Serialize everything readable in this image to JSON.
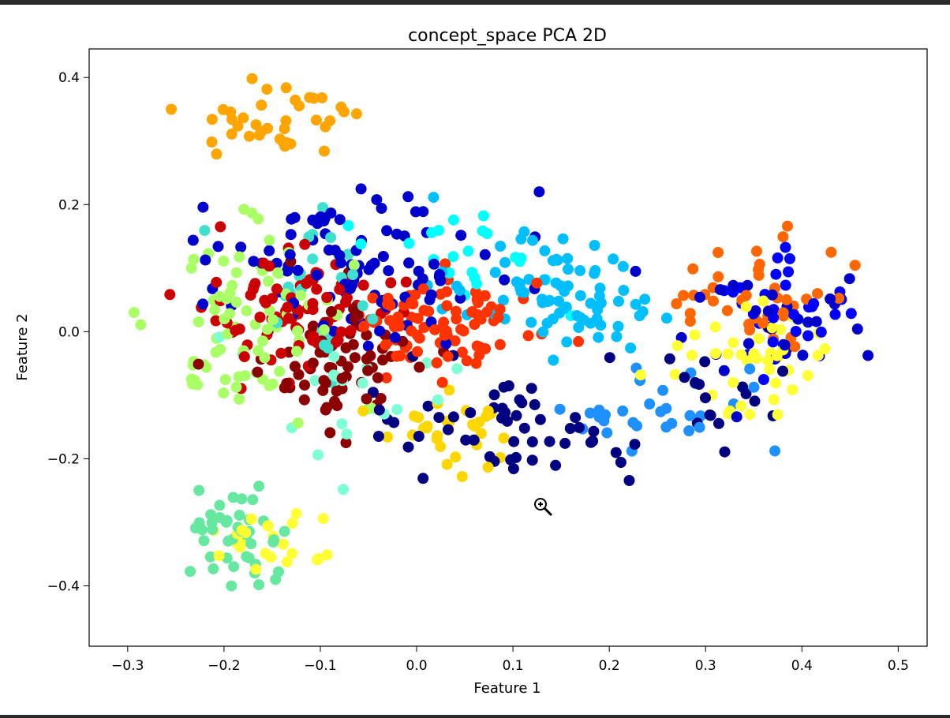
{
  "chart_data": {
    "type": "scatter",
    "title": "concept_space PCA 2D",
    "xlabel": "Feature 1",
    "ylabel": "Feature 2",
    "xlim": [
      -0.34,
      0.53
    ],
    "ylim": [
      -0.495,
      0.445
    ],
    "xticks": [
      -0.3,
      -0.2,
      -0.1,
      0.0,
      0.1,
      0.2,
      0.3,
      0.4,
      0.5
    ],
    "xtick_labels": [
      "−0.3",
      "−0.2",
      "−0.1",
      "0.0",
      "0.1",
      "0.2",
      "0.3",
      "0.4",
      "0.5"
    ],
    "yticks": [
      -0.4,
      -0.2,
      0.0,
      0.2,
      0.4
    ],
    "ytick_labels": [
      "−0.4",
      "−0.2",
      "0.0",
      "0.2",
      "0.4"
    ],
    "grid": false,
    "colormap": "jet",
    "clusters": [
      {
        "color": "#000080",
        "n": 55,
        "cx": 0.12,
        "cy": -0.16,
        "sx": 0.1,
        "sy": 0.05
      },
      {
        "color": "#000080",
        "n": 18,
        "cx": 0.31,
        "cy": -0.1,
        "sx": 0.06,
        "sy": 0.05
      },
      {
        "color": "#0000cd",
        "n": 95,
        "cx": -0.06,
        "cy": 0.1,
        "sx": 0.09,
        "sy": 0.08
      },
      {
        "color": "#0000cd",
        "n": 30,
        "cx": 0.36,
        "cy": 0.02,
        "sx": 0.06,
        "sy": 0.05
      },
      {
        "color": "#0000ff",
        "n": 30,
        "cx": 0.38,
        "cy": 0.04,
        "sx": 0.05,
        "sy": 0.05
      },
      {
        "color": "#1e90ff",
        "n": 30,
        "cx": 0.25,
        "cy": -0.12,
        "sx": 0.06,
        "sy": 0.05
      },
      {
        "color": "#00bfff",
        "n": 60,
        "cx": 0.12,
        "cy": 0.07,
        "sx": 0.06,
        "sy": 0.05
      },
      {
        "color": "#00bfff",
        "n": 20,
        "cx": 0.2,
        "cy": 0.04,
        "sx": 0.04,
        "sy": 0.04
      },
      {
        "color": "#00ffff",
        "n": 22,
        "cx": 0.04,
        "cy": 0.12,
        "sx": 0.06,
        "sy": 0.05
      },
      {
        "color": "#40e0d0",
        "n": 25,
        "cx": -0.12,
        "cy": 0.06,
        "sx": 0.08,
        "sy": 0.08
      },
      {
        "color": "#7fffd4",
        "n": 20,
        "cx": -0.08,
        "cy": -0.1,
        "sx": 0.06,
        "sy": 0.05
      },
      {
        "color": "#66e8a0",
        "n": 42,
        "cx": -0.19,
        "cy": -0.33,
        "sx": 0.03,
        "sy": 0.05
      },
      {
        "color": "#aaff66",
        "n": 75,
        "cx": -0.17,
        "cy": 0.03,
        "sx": 0.06,
        "sy": 0.09
      },
      {
        "color": "#ffff33",
        "n": 25,
        "cx": -0.16,
        "cy": -0.32,
        "sx": 0.04,
        "sy": 0.04
      },
      {
        "color": "#ffff33",
        "n": 40,
        "cx": 0.34,
        "cy": -0.05,
        "sx": 0.05,
        "sy": 0.05
      },
      {
        "color": "#ffd700",
        "n": 30,
        "cx": 0.05,
        "cy": -0.15,
        "sx": 0.04,
        "sy": 0.04
      },
      {
        "color": "#ffa500",
        "n": 38,
        "cx": -0.15,
        "cy": 0.33,
        "sx": 0.06,
        "sy": 0.04
      },
      {
        "color": "#ff6600",
        "n": 40,
        "cx": 0.36,
        "cy": 0.06,
        "sx": 0.07,
        "sy": 0.05
      },
      {
        "color": "#ff3300",
        "n": 90,
        "cx": 0.02,
        "cy": 0.01,
        "sx": 0.07,
        "sy": 0.05
      },
      {
        "color": "#cc0000",
        "n": 85,
        "cx": -0.13,
        "cy": 0.03,
        "sx": 0.06,
        "sy": 0.06
      },
      {
        "color": "#8b0000",
        "n": 70,
        "cx": -0.08,
        "cy": -0.05,
        "sx": 0.05,
        "sy": 0.06
      }
    ]
  }
}
